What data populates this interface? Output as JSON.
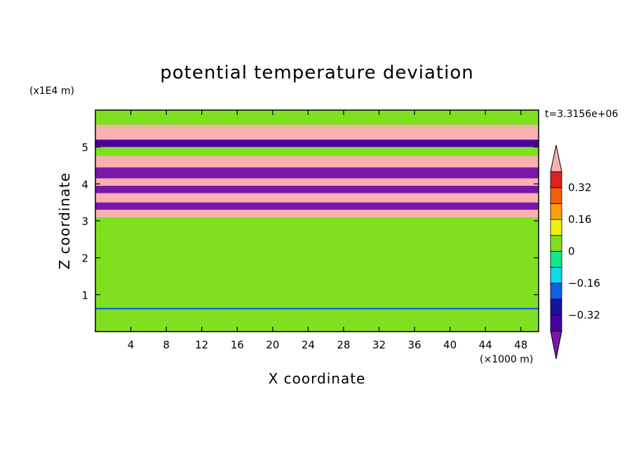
{
  "chart_data": {
    "type": "heatmap",
    "title": "potential temperature deviation",
    "xlabel": "X coordinate",
    "ylabel": "Z coordinate",
    "x_unit": "(×1000 m)",
    "y_unit": "(x1E4 m)",
    "time_label": "t=3.3156e+06",
    "xlim": [
      0,
      50
    ],
    "ylim": [
      0,
      6
    ],
    "x_ticks": [
      4,
      8,
      12,
      16,
      20,
      24,
      28,
      32,
      36,
      40,
      44,
      48
    ],
    "x_tick_labels": [
      "4",
      "8",
      "12",
      "16",
      "20",
      "24",
      "28",
      "32",
      "36",
      "40",
      "44",
      "48"
    ],
    "y_ticks": [
      1,
      2,
      3,
      4,
      5
    ],
    "y_tick_labels": [
      "1",
      "2",
      "3",
      "4",
      "5"
    ],
    "colorbar": {
      "levels": [
        -0.4,
        -0.32,
        -0.24,
        -0.16,
        -0.08,
        0,
        0.08,
        0.16,
        0.24,
        0.32,
        0.4
      ],
      "tick_values": [
        -0.32,
        -0.16,
        0,
        0.16,
        0.32
      ],
      "tick_labels": [
        "−0.32",
        "−0.16",
        "0",
        "0.16",
        "0.32"
      ],
      "colors": [
        "#7a17a8",
        "#4a00a0",
        "#1a10a0",
        "#1060e8",
        "#10d8f0",
        "#10e890",
        "#80e020",
        "#f0f010",
        "#f8a010",
        "#f06010",
        "#e02020",
        "#f8b0b0"
      ],
      "extend": "both"
    },
    "bands": [
      {
        "z_bottom": 0.0,
        "z_top": 0.6,
        "value": 0.0
      },
      {
        "z_bottom": 0.6,
        "z_top": 0.65,
        "value": -0.2
      },
      {
        "z_bottom": 0.65,
        "z_top": 1.5,
        "value": 0.02
      },
      {
        "z_bottom": 1.5,
        "z_top": 2.6,
        "value": 0.06
      },
      {
        "z_bottom": 2.6,
        "z_top": 3.1,
        "value": 0.03
      },
      {
        "z_bottom": 3.1,
        "z_top": 3.3,
        "value": 0.45
      },
      {
        "z_bottom": 3.3,
        "z_top": 3.5,
        "value": -0.45
      },
      {
        "z_bottom": 3.5,
        "z_top": 3.75,
        "value": 0.45
      },
      {
        "z_bottom": 3.75,
        "z_top": 3.95,
        "value": -0.45
      },
      {
        "z_bottom": 3.95,
        "z_top": 4.15,
        "value": 0.45
      },
      {
        "z_bottom": 4.15,
        "z_top": 4.45,
        "value": -0.45
      },
      {
        "z_bottom": 4.45,
        "z_top": 4.75,
        "value": 0.45
      },
      {
        "z_bottom": 4.75,
        "z_top": 5.0,
        "value": 0.02
      },
      {
        "z_bottom": 5.0,
        "z_top": 5.2,
        "value": -0.4
      },
      {
        "z_bottom": 5.2,
        "z_top": 5.6,
        "value": 0.45
      },
      {
        "z_bottom": 5.6,
        "z_top": 6.0,
        "value": 0.03
      }
    ]
  }
}
